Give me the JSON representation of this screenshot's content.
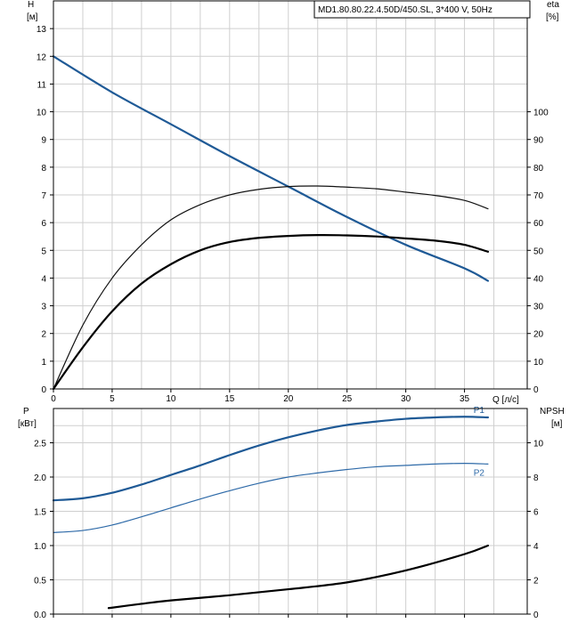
{
  "title": "MD1.80.80.22.4.50D/450.SL, 3*400 V, 50Hz",
  "chart_data": [
    {
      "type": "line",
      "panel": "top",
      "x_axis": {
        "label": "Q [л/с]",
        "range": [
          0,
          40
        ],
        "ticks": [
          0,
          5,
          10,
          15,
          20,
          25,
          30,
          35
        ]
      },
      "y_left": {
        "label_top": "H",
        "label_unit": "[м]",
        "range": [
          0,
          14
        ],
        "ticks": [
          0,
          1,
          2,
          3,
          4,
          5,
          6,
          7,
          8,
          9,
          10,
          11,
          12,
          13
        ]
      },
      "y_right": {
        "label_top": "eta",
        "label_unit": "[%]",
        "range": [
          0,
          140
        ],
        "ticks": [
          0,
          10,
          20,
          30,
          40,
          50,
          60,
          70,
          80,
          90,
          100
        ]
      },
      "grid": true,
      "series": [
        {
          "axis": "left",
          "color": "#1f5a96",
          "width": 2.2,
          "x": [
            0,
            5,
            10,
            15,
            20,
            25,
            30,
            35,
            37
          ],
          "y": [
            12.0,
            10.7,
            9.55,
            8.4,
            7.3,
            6.2,
            5.2,
            4.35,
            3.9
          ]
        },
        {
          "axis": "right",
          "color": "#111111",
          "width": 1.2,
          "x": [
            0,
            2.5,
            5,
            7.5,
            10,
            12.5,
            15,
            17.5,
            20,
            22.5,
            25,
            27.5,
            30,
            32.5,
            35,
            37
          ],
          "y": [
            0,
            23,
            40,
            52,
            61,
            66.5,
            70,
            72,
            73,
            73.2,
            72.8,
            72.2,
            71,
            69.8,
            68,
            65
          ]
        },
        {
          "axis": "right",
          "color": "#000000",
          "width": 2.2,
          "x": [
            0,
            2.5,
            5,
            7.5,
            10,
            12.5,
            15,
            17.5,
            20,
            22.5,
            25,
            27.5,
            30,
            32.5,
            35,
            37
          ],
          "y": [
            0,
            15,
            28,
            38,
            45,
            50,
            53,
            54.5,
            55.2,
            55.5,
            55.4,
            55,
            54.3,
            53.5,
            52,
            49.5
          ]
        }
      ]
    },
    {
      "type": "line",
      "panel": "bottom",
      "x_axis": {
        "range": [
          0,
          40
        ],
        "ticks": [
          0,
          5,
          10,
          15,
          20,
          25,
          30,
          35
        ]
      },
      "y_left": {
        "label_top": "P",
        "label_unit": "[кВт]",
        "range": [
          0,
          3.0
        ],
        "ticks": [
          0.0,
          0.5,
          1.0,
          1.5,
          2.0,
          2.5
        ]
      },
      "y_right": {
        "label_top": "NPSH",
        "label_unit": "[м]",
        "range": [
          0,
          12
        ],
        "ticks": [
          0,
          2,
          4,
          6,
          8,
          10
        ]
      },
      "grid": true,
      "series": [
        {
          "name": "P1",
          "axis": "left",
          "color": "#1f5a96",
          "width": 2.2,
          "x": [
            0,
            2.5,
            5,
            7.5,
            10,
            12.5,
            15,
            17.5,
            20,
            22.5,
            25,
            27.5,
            30,
            32.5,
            35,
            37
          ],
          "y": [
            1.66,
            1.69,
            1.77,
            1.89,
            2.03,
            2.17,
            2.32,
            2.46,
            2.58,
            2.68,
            2.76,
            2.81,
            2.85,
            2.87,
            2.88,
            2.87
          ]
        },
        {
          "name": "P2",
          "axis": "left",
          "color": "#2e6aa8",
          "width": 1.2,
          "x": [
            0,
            2.5,
            5,
            7.5,
            10,
            12.5,
            15,
            17.5,
            20,
            22.5,
            25,
            27.5,
            30,
            32.5,
            35,
            37
          ],
          "y": [
            1.19,
            1.22,
            1.3,
            1.42,
            1.55,
            1.68,
            1.8,
            1.91,
            2.0,
            2.06,
            2.11,
            2.15,
            2.17,
            2.19,
            2.2,
            2.19
          ]
        },
        {
          "axis": "right",
          "color": "#000000",
          "width": 2.2,
          "x": [
            4.7,
            7.5,
            10,
            15,
            20,
            25,
            30,
            35,
            37
          ],
          "y": [
            0.35,
            0.6,
            0.8,
            1.1,
            1.45,
            1.85,
            2.55,
            3.5,
            4.0
          ]
        }
      ]
    }
  ]
}
